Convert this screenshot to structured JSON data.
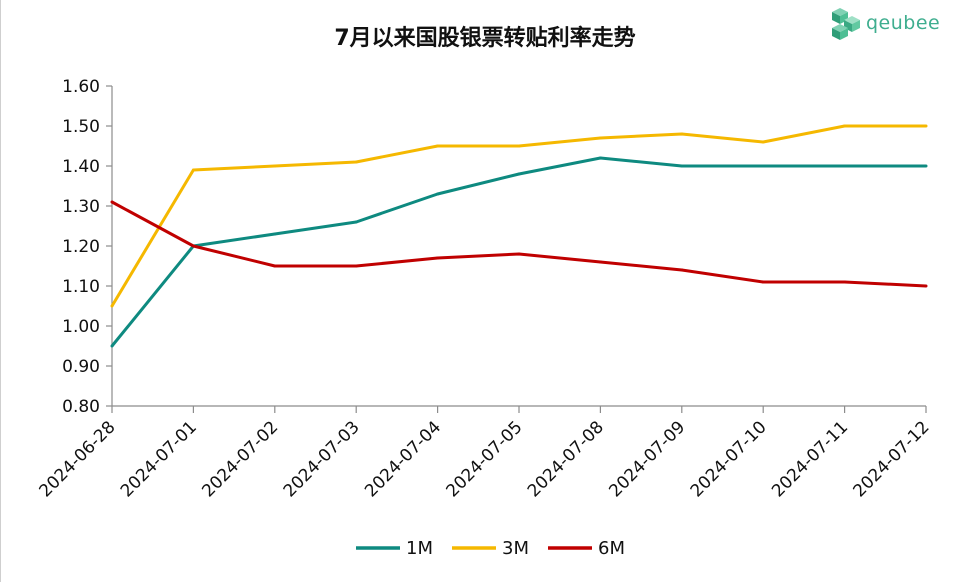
{
  "chart_data": {
    "type": "line",
    "title": "7月以来国股银票转贴利率走势",
    "categories": [
      "2024-06-28",
      "2024-07-01",
      "2024-07-02",
      "2024-07-03",
      "2024-07-04",
      "2024-07-05",
      "2024-07-08",
      "2024-07-09",
      "2024-07-10",
      "2024-07-11",
      "2024-07-12"
    ],
    "series": [
      {
        "name": "1M",
        "color": "#0e8a80",
        "values": [
          0.95,
          1.2,
          1.23,
          1.26,
          1.33,
          1.38,
          1.42,
          1.4,
          1.4,
          1.4,
          1.4
        ]
      },
      {
        "name": "3M",
        "color": "#f5b800",
        "values": [
          1.05,
          1.39,
          1.4,
          1.41,
          1.45,
          1.45,
          1.47,
          1.48,
          1.46,
          1.5,
          1.5
        ]
      },
      {
        "name": "6M",
        "color": "#c00000",
        "values": [
          1.31,
          1.2,
          1.15,
          1.15,
          1.17,
          1.18,
          1.16,
          1.14,
          1.11,
          1.11,
          1.1
        ]
      }
    ],
    "ylim": [
      0.8,
      1.6
    ],
    "yticks": [
      "0.80",
      "0.90",
      "1.00",
      "1.10",
      "1.20",
      "1.30",
      "1.40",
      "1.50",
      "1.60"
    ],
    "grid": false,
    "legend": "bottom-center"
  },
  "logo": {
    "text": "qeubee",
    "icon": "cube-cluster-icon",
    "color": "#3fae8f"
  }
}
